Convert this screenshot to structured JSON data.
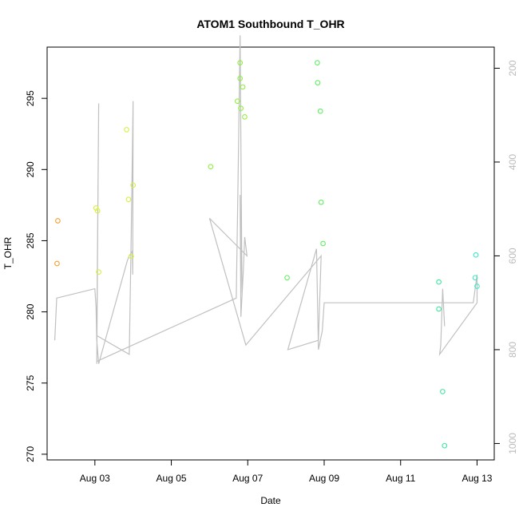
{
  "chart_data": {
    "type": "scatter",
    "title": "ATOM1 Southbound T_OHR",
    "xlabel": "Date",
    "ylabel": "T_OHR",
    "y2label": "",
    "xlim": [
      1.75,
      13.45
    ],
    "ylim": [
      269.6,
      298.6
    ],
    "y2lim": [
      1035,
      155
    ],
    "x_ticks": [
      {
        "value": 3,
        "label": "Aug 03"
      },
      {
        "value": 5,
        "label": "Aug 05"
      },
      {
        "value": 7,
        "label": "Aug 07"
      },
      {
        "value": 9,
        "label": "Aug 09"
      },
      {
        "value": 11,
        "label": "Aug 11"
      },
      {
        "value": 13,
        "label": "Aug 13"
      }
    ],
    "y_ticks": [
      270,
      275,
      280,
      285,
      290,
      295
    ],
    "y2_ticks": [
      200,
      400,
      600,
      800,
      1000
    ],
    "grid": false,
    "legend": "none",
    "points": [
      {
        "x": 2.03,
        "y": 286.4,
        "color": "#f0a030"
      },
      {
        "x": 2.01,
        "y": 283.4,
        "color": "#f0a030"
      },
      {
        "x": 3.03,
        "y": 287.3,
        "color": "#d8f040"
      },
      {
        "x": 3.07,
        "y": 287.1,
        "color": "#d8f040"
      },
      {
        "x": 3.1,
        "y": 282.8,
        "color": "#d8f040"
      },
      {
        "x": 3.83,
        "y": 292.8,
        "color": "#d8f040"
      },
      {
        "x": 3.88,
        "y": 287.9,
        "color": "#d8f040"
      },
      {
        "x": 3.95,
        "y": 283.9,
        "color": "#d8f040"
      },
      {
        "x": 4.0,
        "y": 288.9,
        "color": "#d8f040"
      },
      {
        "x": 6.03,
        "y": 290.2,
        "color": "#90f040"
      },
      {
        "x": 6.73,
        "y": 294.8,
        "color": "#90f040"
      },
      {
        "x": 6.8,
        "y": 297.5,
        "color": "#90f040"
      },
      {
        "x": 6.8,
        "y": 296.4,
        "color": "#90f040"
      },
      {
        "x": 6.82,
        "y": 294.3,
        "color": "#90f040"
      },
      {
        "x": 6.87,
        "y": 295.8,
        "color": "#90f040"
      },
      {
        "x": 6.92,
        "y": 293.7,
        "color": "#90f040"
      },
      {
        "x": 8.03,
        "y": 282.4,
        "color": "#60f060"
      },
      {
        "x": 8.82,
        "y": 297.5,
        "color": "#60f060"
      },
      {
        "x": 8.83,
        "y": 296.1,
        "color": "#60f060"
      },
      {
        "x": 8.9,
        "y": 294.1,
        "color": "#60f060"
      },
      {
        "x": 8.92,
        "y": 287.7,
        "color": "#60f060"
      },
      {
        "x": 8.97,
        "y": 284.8,
        "color": "#60f060"
      },
      {
        "x": 12.0,
        "y": 282.1,
        "color": "#40e8a0"
      },
      {
        "x": 12.0,
        "y": 280.2,
        "color": "#40e8a0"
      },
      {
        "x": 12.1,
        "y": 274.4,
        "color": "#40e8a0"
      },
      {
        "x": 12.15,
        "y": 270.6,
        "color": "#40e8a0"
      },
      {
        "x": 12.95,
        "y": 282.4,
        "color": "#40e8c8"
      },
      {
        "x": 12.97,
        "y": 284.0,
        "color": "#40e8c8"
      },
      {
        "x": 13.0,
        "y": 281.8,
        "color": "#40e8c8"
      }
    ],
    "line_series": {
      "axis": "right",
      "color": "#c0c0c0",
      "x": [
        1.95,
        2.0,
        3.0,
        3.03,
        3.05,
        3.1,
        3.85,
        3.9,
        3.98,
        3.99,
        4.0,
        3.95,
        3.9,
        3.05,
        3.1,
        3.05,
        3.05,
        6.7,
        6.75,
        6.8,
        6.85,
        6.8,
        6.82,
        6.88,
        6.92,
        6.98,
        6.0,
        6.95,
        8.92,
        8.85,
        8.05,
        8.8,
        8.85,
        8.95,
        9.0,
        12.9,
        13.0,
        13.0,
        12.02,
        12.05,
        12.1,
        12.15
      ],
      "y": [
        780,
        690,
        670,
        710,
        780,
        830,
        610,
        600,
        590,
        640,
        270,
        560,
        810,
        770,
        275,
        830,
        825,
        690,
        420,
        130,
        680,
        470,
        730,
        640,
        560,
        600,
        520,
        790,
        600,
        780,
        800,
        585,
        800,
        760,
        700,
        700,
        640,
        700,
        810,
        790,
        670,
        750
      ]
    }
  }
}
